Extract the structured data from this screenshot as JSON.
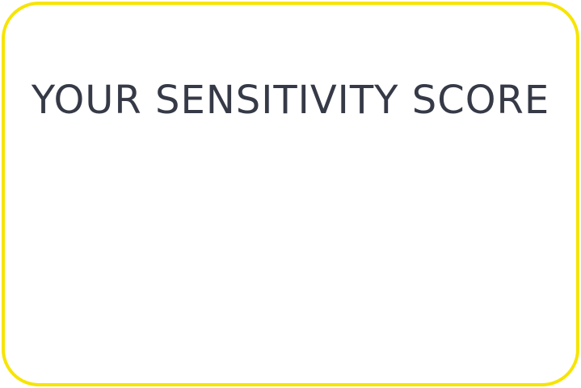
{
  "card": {
    "title": "YOUR SENSITIVITY SCORE",
    "border_color": "#f7e400",
    "title_color": "#363a47"
  }
}
